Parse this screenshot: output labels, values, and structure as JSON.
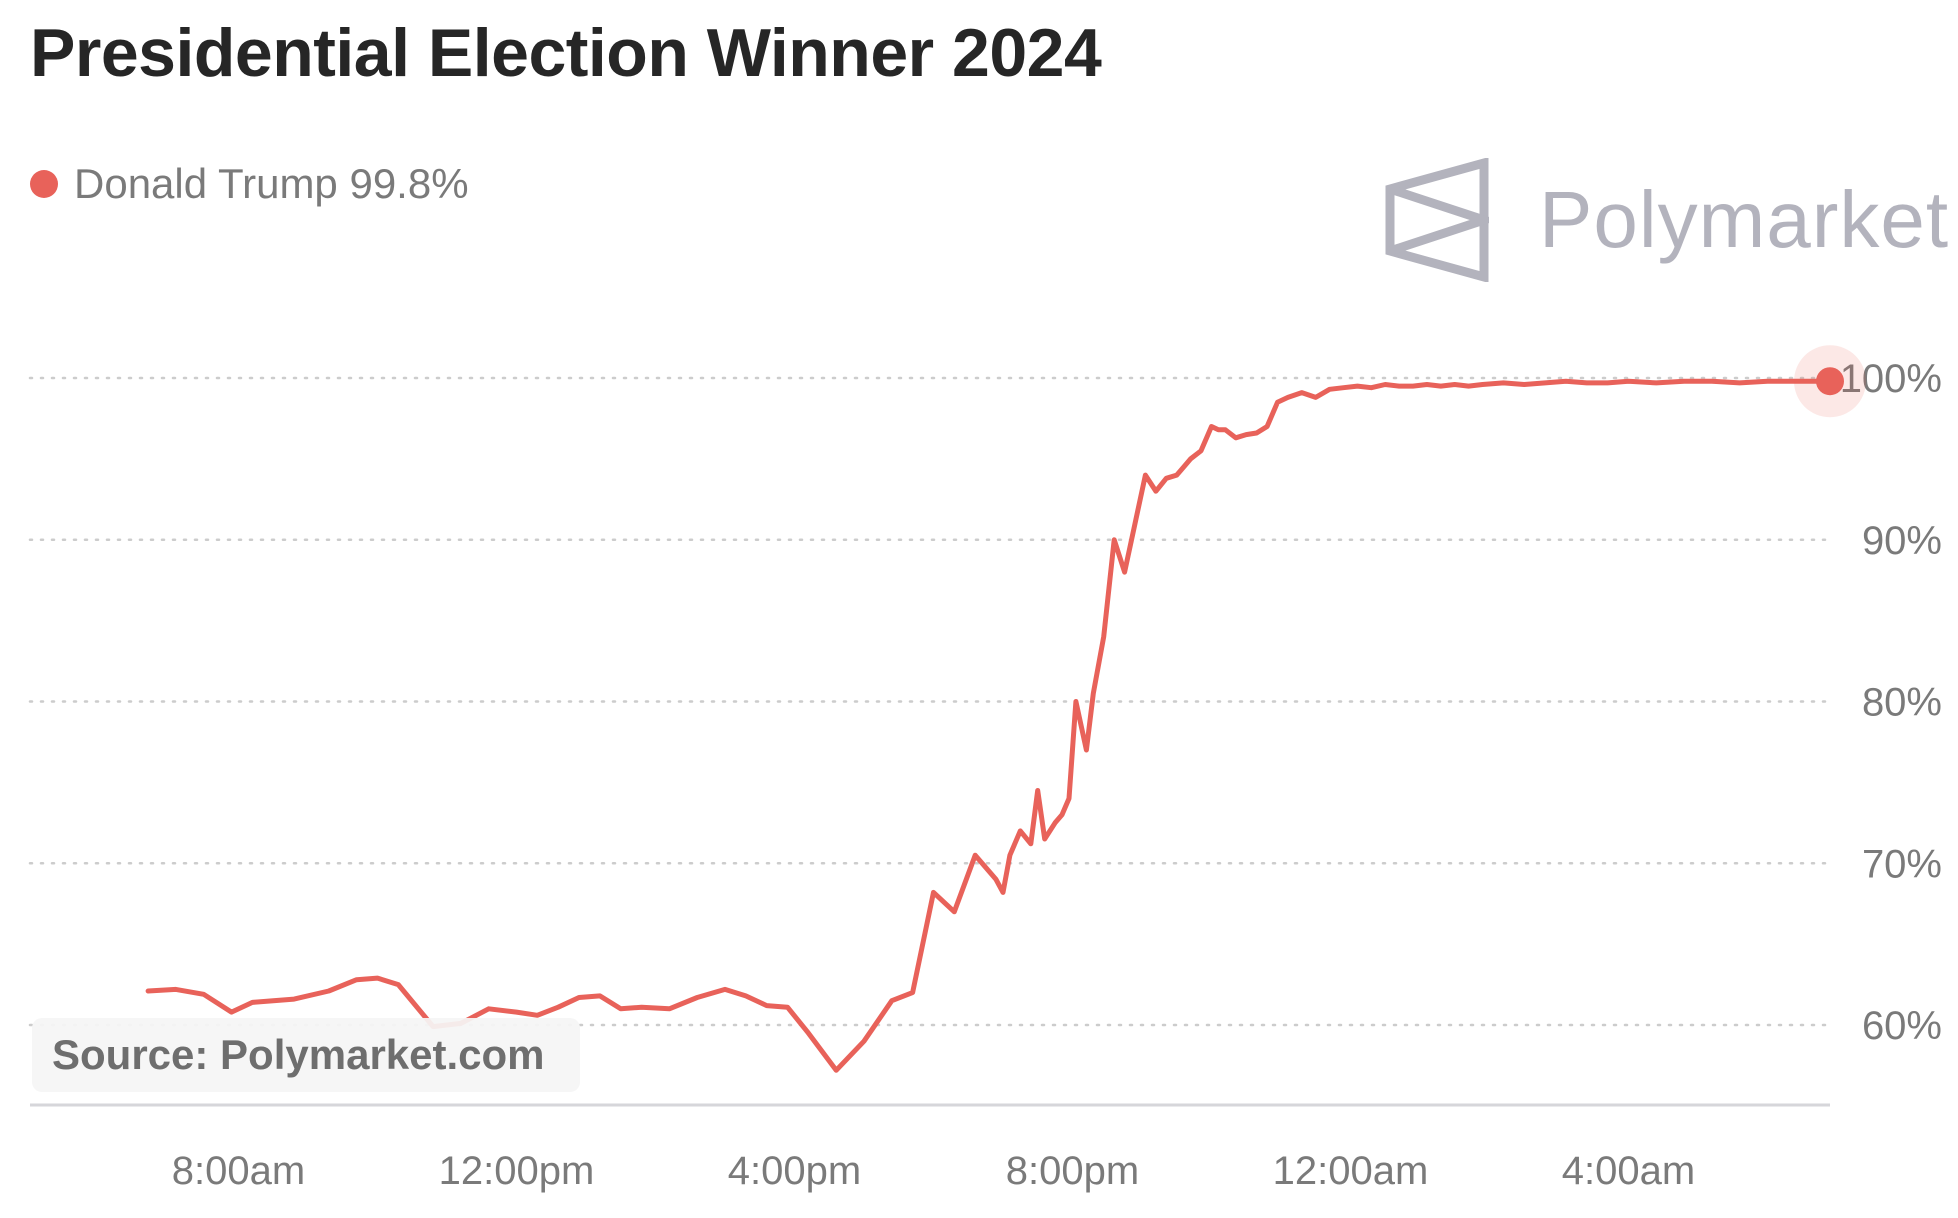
{
  "colors": {
    "series": "#e8625a",
    "text": "#262626",
    "muted": "#7a7a7a",
    "grid": "#cccccc",
    "logo": "#b3b3bd"
  },
  "legend": {
    "label": "Donald Trump 99.8%"
  },
  "logo": {
    "text": "Polymarket",
    "icon": "polymarket-logo-icon"
  },
  "source": {
    "text": "Source: Polymarket.com"
  },
  "chart_data": {
    "type": "line",
    "title": "Presidential Election Winner 2024",
    "xlabel": "",
    "ylabel": "",
    "x_unit": "hours since 5:00am",
    "xlim": [
      5,
      30.9
    ],
    "ylim": [
      55,
      101
    ],
    "y_ticks": [
      60,
      70,
      80,
      90,
      100
    ],
    "y_tick_labels": [
      "60%",
      "70%",
      "80%",
      "90%",
      "100%"
    ],
    "x_ticks": [
      8,
      12,
      16,
      20,
      24,
      28
    ],
    "x_tick_labels": [
      "8:00am",
      "12:00pm",
      "4:00pm",
      "8:00pm",
      "12:00am",
      "4:00am"
    ],
    "grid": true,
    "legend_position": "top-left",
    "series": [
      {
        "name": "Donald Trump",
        "last_value": "99.8%",
        "x": [
          6.7,
          7.1,
          7.5,
          7.9,
          8.2,
          8.5,
          8.8,
          9.3,
          9.7,
          10.0,
          10.3,
          10.8,
          11.2,
          11.6,
          12.0,
          12.3,
          12.6,
          12.9,
          13.2,
          13.5,
          13.8,
          14.2,
          14.6,
          15.0,
          15.3,
          15.6,
          15.9,
          16.2,
          16.6,
          17.0,
          17.4,
          17.7,
          18.0,
          18.3,
          18.6,
          18.9,
          19.0,
          19.1,
          19.25,
          19.4,
          19.5,
          19.6,
          19.75,
          19.85,
          19.95,
          20.05,
          20.2,
          20.3,
          20.45,
          20.6,
          20.75,
          20.9,
          21.05,
          21.2,
          21.35,
          21.5,
          21.6,
          21.7,
          21.85,
          22.0,
          22.1,
          22.2,
          22.35,
          22.5,
          22.65,
          22.8,
          22.95,
          23.1,
          23.3,
          23.5,
          23.7,
          23.9,
          24.1,
          24.3,
          24.5,
          24.7,
          24.9,
          25.1,
          25.3,
          25.5,
          25.7,
          25.9,
          26.2,
          26.5,
          26.8,
          27.1,
          27.4,
          27.7,
          28.0,
          28.4,
          28.8,
          29.2,
          29.6,
          30.0,
          30.4,
          30.9
        ],
        "values": [
          62.1,
          62.2,
          61.9,
          60.8,
          61.4,
          61.5,
          61.6,
          62.1,
          62.8,
          62.9,
          62.5,
          59.9,
          60.1,
          61.0,
          60.8,
          60.6,
          61.1,
          61.7,
          61.8,
          61.0,
          61.1,
          61.0,
          61.7,
          62.2,
          61.8,
          61.2,
          61.1,
          59.5,
          57.2,
          59.0,
          61.5,
          62.0,
          68.2,
          67.0,
          70.5,
          69.0,
          68.2,
          70.5,
          72.0,
          71.2,
          74.5,
          71.5,
          72.5,
          73.0,
          74.0,
          80.0,
          77.0,
          80.5,
          84.0,
          90.0,
          88.0,
          91.0,
          94.0,
          93.0,
          93.8,
          94.0,
          94.5,
          95.0,
          95.5,
          97.0,
          96.8,
          96.8,
          96.3,
          96.5,
          96.6,
          97.0,
          98.5,
          98.8,
          99.1,
          98.8,
          99.3,
          99.4,
          99.5,
          99.4,
          99.6,
          99.5,
          99.5,
          99.6,
          99.5,
          99.6,
          99.5,
          99.6,
          99.7,
          99.6,
          99.7,
          99.8,
          99.7,
          99.7,
          99.8,
          99.7,
          99.8,
          99.8,
          99.7,
          99.8,
          99.8,
          99.8
        ]
      }
    ]
  }
}
